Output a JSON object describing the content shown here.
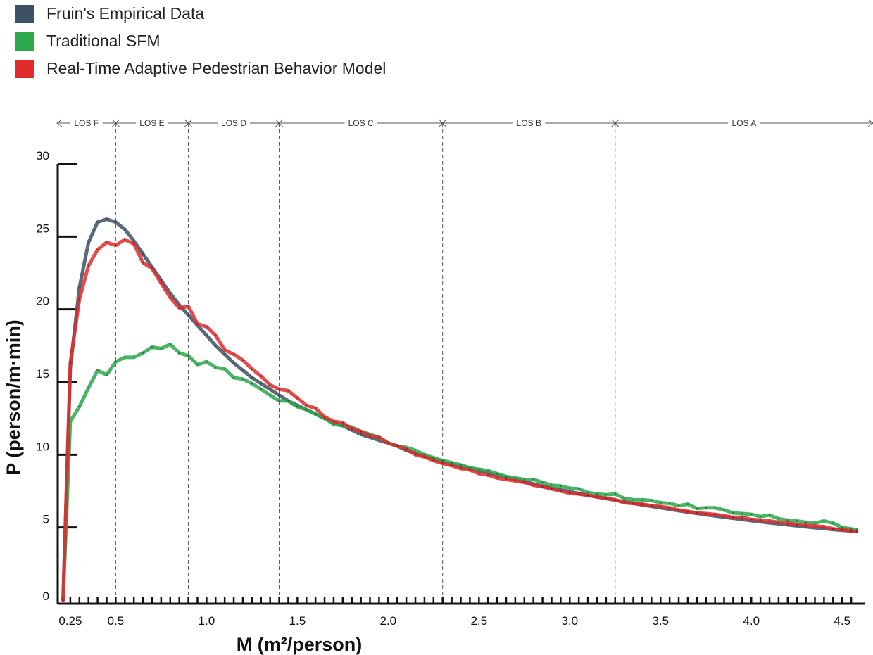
{
  "chart_data": {
    "type": "line",
    "title": "",
    "xlabel": "M (m²/person)",
    "ylabel": "P (person/m·min)",
    "xlim": [
      0.2,
      4.6
    ],
    "ylim": [
      0,
      30
    ],
    "x_ticks": [
      {
        "value": 0.25,
        "label": "0.25"
      },
      {
        "value": 0.5,
        "label": "0.5"
      },
      {
        "value": 1.0,
        "label": "1.0"
      },
      {
        "value": 1.5,
        "label": "1.5"
      },
      {
        "value": 2.0,
        "label": "2.0"
      },
      {
        "value": 2.5,
        "label": "2.5"
      },
      {
        "value": 3.0,
        "label": "3.0"
      },
      {
        "value": 3.5,
        "label": "3.5"
      },
      {
        "value": 4.0,
        "label": "4.0"
      },
      {
        "value": 4.5,
        "label": "4.5"
      }
    ],
    "y_ticks": [
      {
        "value": 0,
        "label": "0"
      },
      {
        "value": 5,
        "label": "5"
      },
      {
        "value": 10,
        "label": "10"
      },
      {
        "value": 15,
        "label": "15"
      },
      {
        "value": 20,
        "label": "20"
      },
      {
        "value": 25,
        "label": "25"
      },
      {
        "value": 30,
        "label": "30"
      }
    ],
    "los_boundaries": [
      0.5,
      0.9,
      1.4,
      2.3,
      3.25
    ],
    "los_zones": [
      {
        "label": "LOS F",
        "from": 0.2,
        "to": 0.5
      },
      {
        "label": "LOS E",
        "from": 0.5,
        "to": 0.9
      },
      {
        "label": "LOS D",
        "from": 0.9,
        "to": 1.4
      },
      {
        "label": "LOS C",
        "from": 1.4,
        "to": 2.3
      },
      {
        "label": "LOS B",
        "from": 2.3,
        "to": 3.25
      },
      {
        "label": "LOS A",
        "from": 3.25,
        "to": 4.6
      }
    ],
    "x": [
      0.21,
      0.25,
      0.3,
      0.35,
      0.4,
      0.45,
      0.5,
      0.55,
      0.6,
      0.65,
      0.7,
      0.75,
      0.8,
      0.85,
      0.9,
      0.95,
      1.0,
      1.05,
      1.1,
      1.15,
      1.2,
      1.25,
      1.3,
      1.35,
      1.4,
      1.45,
      1.5,
      1.55,
      1.6,
      1.65,
      1.7,
      1.75,
      1.8,
      1.85,
      1.9,
      1.95,
      2.0,
      2.05,
      2.1,
      2.15,
      2.2,
      2.25,
      2.3,
      2.35,
      2.4,
      2.45,
      2.5,
      2.55,
      2.6,
      2.65,
      2.7,
      2.75,
      2.8,
      2.85,
      2.9,
      2.95,
      3.0,
      3.05,
      3.1,
      3.15,
      3.2,
      3.25,
      3.3,
      3.35,
      3.4,
      3.45,
      3.5,
      3.55,
      3.6,
      3.65,
      3.7,
      3.75,
      3.8,
      3.85,
      3.9,
      3.95,
      4.0,
      4.05,
      4.1,
      4.15,
      4.2,
      4.25,
      4.3,
      4.35,
      4.4,
      4.45,
      4.5,
      4.55,
      4.58
    ],
    "series": [
      {
        "name": "Fruin's Empirical Data",
        "color": "#3c5066",
        "values": [
          0.0,
          16.0,
          21.5,
          24.6,
          26.0,
          26.2,
          26.0,
          25.5,
          24.7,
          23.8,
          22.9,
          22.0,
          21.1,
          20.3,
          19.6,
          18.9,
          18.2,
          17.5,
          16.9,
          16.3,
          15.8,
          15.3,
          14.9,
          14.5,
          14.1,
          13.7,
          13.4,
          13.1,
          12.8,
          12.5,
          12.2,
          12.0,
          11.7,
          11.4,
          11.2,
          11.0,
          10.8,
          10.6,
          10.3,
          10.1,
          9.9,
          9.7,
          9.5,
          9.35,
          9.2,
          9.05,
          8.9,
          8.75,
          8.6,
          8.45,
          8.3,
          8.15,
          8.0,
          7.85,
          7.7,
          7.58,
          7.46,
          7.34,
          7.22,
          7.1,
          6.99,
          6.88,
          6.77,
          6.66,
          6.55,
          6.45,
          6.35,
          6.25,
          6.15,
          6.06,
          5.97,
          5.88,
          5.79,
          5.71,
          5.63,
          5.55,
          5.47,
          5.39,
          5.32,
          5.25,
          5.18,
          5.11,
          5.04,
          4.98,
          4.92,
          4.86,
          4.8,
          4.75,
          4.72
        ]
      },
      {
        "name": "Traditional SFM",
        "color": "#2aa84a",
        "values": [
          0.0,
          12.3,
          13.3,
          14.6,
          15.8,
          15.5,
          16.4,
          16.7,
          16.7,
          17.0,
          17.4,
          17.3,
          17.6,
          17.0,
          16.8,
          16.2,
          16.4,
          16.0,
          15.9,
          15.3,
          15.2,
          14.9,
          14.5,
          14.1,
          13.7,
          13.7,
          13.3,
          13.1,
          12.8,
          12.5,
          12.1,
          12.0,
          11.9,
          11.6,
          11.4,
          11.2,
          10.8,
          10.6,
          10.5,
          10.3,
          10.0,
          9.8,
          9.6,
          9.45,
          9.3,
          9.1,
          9.0,
          8.9,
          8.7,
          8.5,
          8.4,
          8.3,
          8.3,
          8.1,
          7.9,
          7.85,
          7.7,
          7.65,
          7.4,
          7.3,
          7.25,
          7.3,
          7.0,
          6.9,
          6.9,
          6.85,
          6.7,
          6.65,
          6.5,
          6.6,
          6.3,
          6.35,
          6.35,
          6.2,
          6.0,
          5.95,
          5.9,
          5.75,
          5.85,
          5.6,
          5.5,
          5.45,
          5.35,
          5.3,
          5.45,
          5.3,
          5.0,
          4.9,
          4.85
        ]
      },
      {
        "name": "Real-Time Adaptive Pedestrian Behavior Model",
        "color": "#e02b2b",
        "values": [
          0.0,
          16.3,
          20.7,
          23.0,
          24.1,
          24.6,
          24.4,
          24.8,
          24.5,
          23.2,
          22.8,
          21.8,
          20.8,
          20.1,
          20.2,
          19.0,
          18.8,
          18.2,
          17.2,
          16.9,
          16.5,
          15.9,
          15.4,
          14.8,
          14.5,
          14.4,
          13.9,
          13.4,
          13.2,
          12.6,
          12.3,
          12.2,
          11.8,
          11.6,
          11.3,
          11.2,
          10.8,
          10.6,
          10.4,
          10.0,
          9.85,
          9.6,
          9.4,
          9.25,
          9.05,
          8.95,
          8.7,
          8.6,
          8.4,
          8.3,
          8.2,
          8.1,
          7.9,
          7.8,
          7.65,
          7.5,
          7.35,
          7.3,
          7.2,
          7.1,
          7.0,
          6.9,
          6.7,
          6.65,
          6.6,
          6.5,
          6.45,
          6.35,
          6.2,
          6.1,
          6.0,
          5.95,
          5.9,
          5.8,
          5.7,
          5.7,
          5.55,
          5.5,
          5.45,
          5.35,
          5.3,
          5.2,
          5.15,
          5.1,
          5.05,
          4.9,
          4.85,
          4.75,
          4.72
        ]
      }
    ]
  }
}
